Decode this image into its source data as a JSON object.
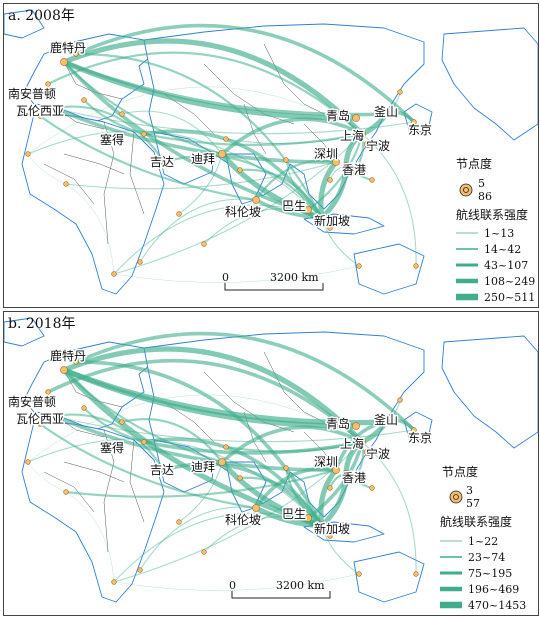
{
  "colors": {
    "route": "#3fae8c",
    "node_fill": "#f2bf70",
    "node_stroke": "#a66d20",
    "land": "#ffffff",
    "coast": "#2f7fd6",
    "border": "#555555"
  },
  "panels": [
    {
      "id": "a",
      "title": "a. 2008年",
      "cities": {
        "rotterdam": "鹿特丹",
        "southampton": "南安普顿",
        "valencia": "瓦伦西亚",
        "said": "塞得",
        "jeddah": "吉达",
        "dubai": "迪拜",
        "colombo": "科伦坡",
        "klang": "巴生",
        "singapore": "新加坡",
        "shenzhen": "深圳",
        "hongkong": "香港",
        "shanghai": "上海",
        "ningbo": "宁波",
        "qingdao": "青岛",
        "busan": "釜山",
        "tokyo": "东京"
      },
      "legend": {
        "node_title": "节点度",
        "node_values": [
          "5",
          "86"
        ],
        "route_title": "航线联系强度",
        "route_classes": [
          "1~13",
          "14~42",
          "43~107",
          "108~249",
          "250~511"
        ]
      },
      "scale": {
        "start": "0",
        "end": "3200 km"
      }
    },
    {
      "id": "b",
      "title": "b. 2018年",
      "cities": {
        "rotterdam": "鹿特丹",
        "southampton": "南安普顿",
        "valencia": "瓦伦西亚",
        "said": "塞得",
        "jeddah": "吉达",
        "dubai": "迪拜",
        "colombo": "科伦坡",
        "klang": "巴生",
        "singapore": "新加坡",
        "shenzhen": "深圳",
        "hongkong": "香港",
        "shanghai": "上海",
        "ningbo": "宁波",
        "qingdao": "青岛",
        "busan": "釜山",
        "tokyo": "东京"
      },
      "legend": {
        "node_title": "节点度",
        "node_values": [
          "3",
          "57"
        ],
        "route_title": "航线联系强度",
        "route_classes": [
          "1~22",
          "23~74",
          "75~195",
          "196~469",
          "470~1453"
        ]
      },
      "scale": {
        "start": "0",
        "end": "3200 km"
      }
    }
  ]
}
